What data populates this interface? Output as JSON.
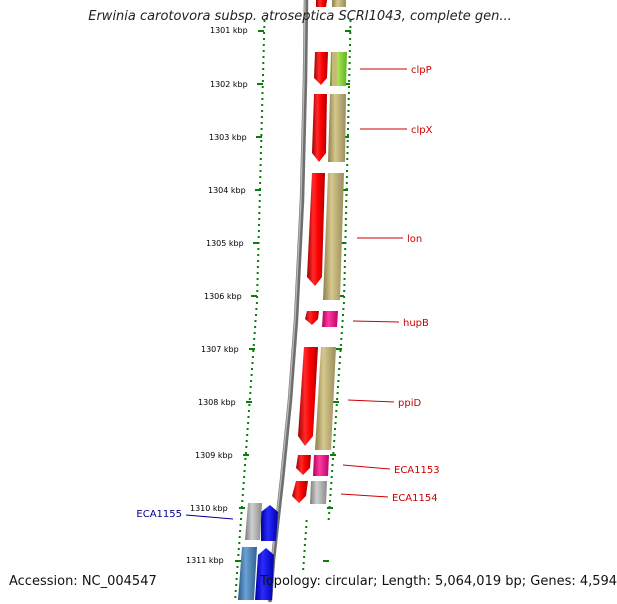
{
  "title": "Erwinia carotovora subsp. atroseptica SCRI1043, complete gen...",
  "footer": {
    "accession": "Accession: NC_004547",
    "topology": "Topology: circular; Length: 5,064,019 bp; Genes: 4,594"
  },
  "colors": {
    "backbone": "#8a8a8a",
    "ruler_tick": "#0a7d0a",
    "forward_gene": "#ff0000",
    "reverse_gene": "#0000ff",
    "label_forward": "#cc0000",
    "label_reverse": "#00008b",
    "cog_khaki": "#c8b878",
    "cog_lime": "#8fe03a",
    "cog_magenta": "#ff1493",
    "cog_gray": "#a6a6a6",
    "cog_steel": "#4682b4"
  },
  "ruler_labels": [
    "1301 kbp",
    "1302 kbp",
    "1303 kbp",
    "1304 kbp",
    "1305 kbp",
    "1306 kbp",
    "1307 kbp",
    "1308 kbp",
    "1309 kbp",
    "1310 kbp",
    "1311 kbp"
  ],
  "genes": [
    {
      "name": "clpP",
      "strand": "+",
      "cog_color": "lime"
    },
    {
      "name": "clpX",
      "strand": "+",
      "cog_color": "khaki"
    },
    {
      "name": "lon",
      "strand": "+",
      "cog_color": "khaki"
    },
    {
      "name": "hupB",
      "strand": "+",
      "cog_color": "magenta"
    },
    {
      "name": "ppiD",
      "strand": "+",
      "cog_color": "khaki"
    },
    {
      "name": "ECA1153",
      "strand": "+",
      "cog_color": "magenta"
    },
    {
      "name": "ECA1154",
      "strand": "+",
      "cog_color": "gray"
    },
    {
      "name": "ECA1155",
      "strand": "-",
      "cog_color": "gray"
    }
  ]
}
